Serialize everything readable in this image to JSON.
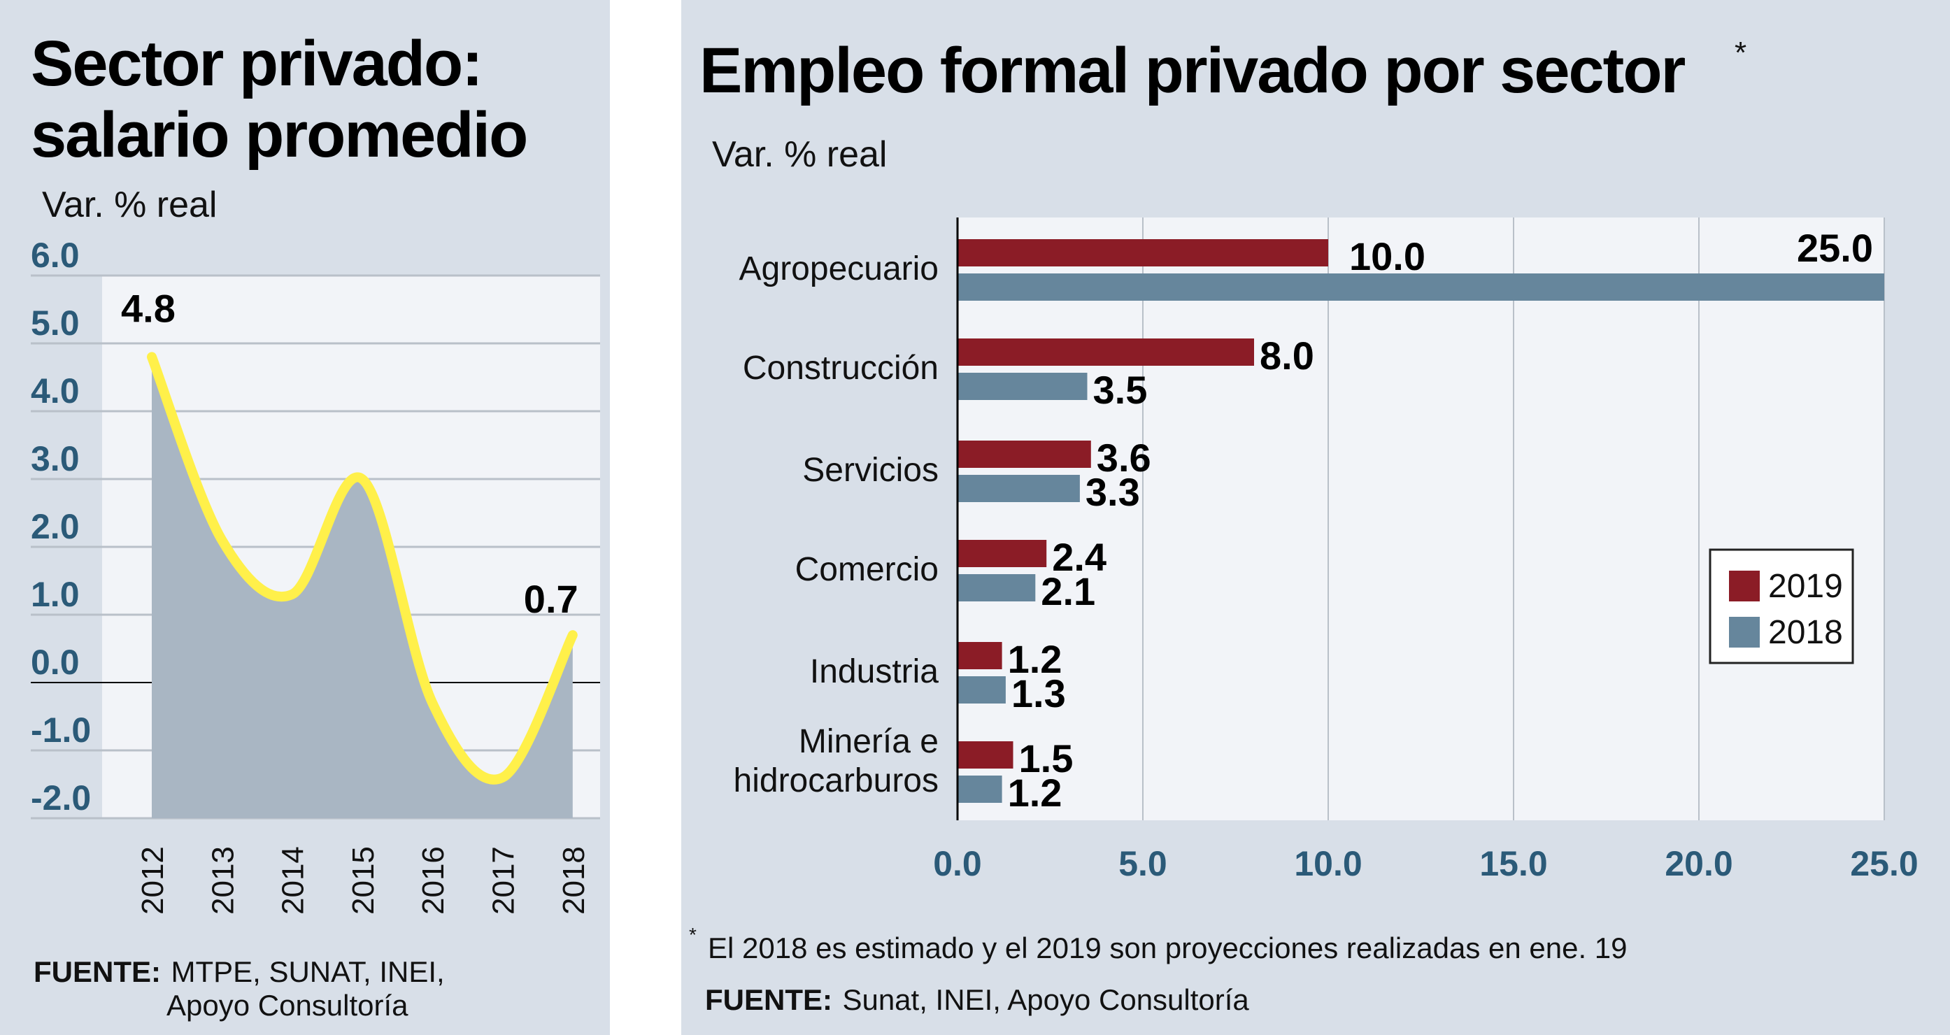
{
  "left": {
    "title_line1": "Sector privado:",
    "title_line2": "salario promedio",
    "subtitle": "Var. % real",
    "source_label": "FUENTE:",
    "source_line1": "MTPE, SUNAT, INEI,",
    "source_line2": "Apoyo Consultoría"
  },
  "right": {
    "title": "Empleo formal privado  por sector",
    "title_mark": "*",
    "subtitle": "Var. % real",
    "footnote_mark": "*",
    "footnote": "El 2018 es estimado y el 2019 son proyecciones realizadas en ene. 19",
    "source_label": "FUENTE:",
    "source": "Sunat, INEI, Apoyo Consultoría"
  },
  "chart_data": [
    {
      "type": "area",
      "subtitle": "Var. % real",
      "x": [
        "2012",
        "2013",
        "2014",
        "2015",
        "2016",
        "2017",
        "2018"
      ],
      "values": [
        4.8,
        2.1,
        1.3,
        3.0,
        -0.3,
        -1.4,
        0.7
      ],
      "data_labels": [
        {
          "x": "2012",
          "text": "4.8"
        },
        {
          "x": "2018",
          "text": "0.7"
        }
      ],
      "ylim": [
        -2.0,
        6.0
      ],
      "yticks": [
        "6.0",
        "5.0",
        "4.0",
        "3.0",
        "2.0",
        "1.0",
        "0.0",
        "-1.0",
        "-2.0"
      ],
      "grid": true,
      "colors": {
        "line": "#fff04a",
        "area": "#a9b6c3",
        "tick": "#2b5a78"
      }
    },
    {
      "type": "bar",
      "orientation": "horizontal",
      "subtitle": "Var. % real",
      "categories": [
        "Agropecuario",
        "Construcción",
        "Servicios",
        "Comercio",
        "Industria",
        "Minería e hidrocarburos"
      ],
      "category_lines": [
        [
          "Agropecuario"
        ],
        [
          "Construcción"
        ],
        [
          "Servicios"
        ],
        [
          "Comercio"
        ],
        [
          "Industria"
        ],
        [
          "Minería e",
          "hidrocarburos"
        ]
      ],
      "series": [
        {
          "name": "2019",
          "color": "#8b1c26",
          "values": [
            10.0,
            8.0,
            3.6,
            2.4,
            1.2,
            1.5
          ],
          "labels": [
            "10.0",
            "8.0",
            "3.6",
            "2.4",
            "1.2",
            "1.5"
          ]
        },
        {
          "name": "2018",
          "color": "#66869c",
          "values": [
            25.0,
            3.5,
            3.3,
            2.1,
            1.3,
            1.2
          ],
          "labels": [
            "25.0",
            "3.5",
            "3.3",
            "2.1",
            "1.3",
            "1.2"
          ]
        }
      ],
      "xlim": [
        0,
        25
      ],
      "xticks": [
        "0.0",
        "5.0",
        "10.0",
        "15.0",
        "20.0",
        "25.0"
      ],
      "grid": true,
      "legend": "right"
    }
  ]
}
